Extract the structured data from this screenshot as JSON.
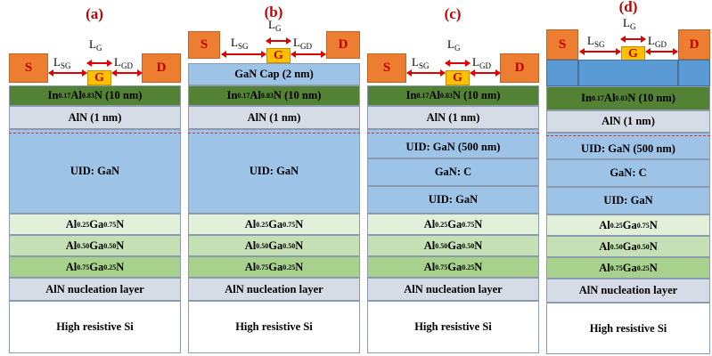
{
  "labels": {
    "source": "S",
    "drain": "D",
    "gate": "G",
    "lg_main": "L",
    "lg_sub": "G",
    "lsg_main": "L",
    "lsg_sub": "SG",
    "lgd_main": "L",
    "lgd_sub": "GD"
  },
  "layers": {
    "barrier_pre": "In",
    "barrier_sub1": "0.17",
    "barrier_mid": "Al",
    "barrier_sub2": "0.83",
    "barrier_post": "N (10 nm)",
    "spacer": "AlN (1 nm)",
    "uid_gan": "UID: GaN",
    "uid_gan_500": "UID: GaN (500 nm)",
    "gan_c": "GaN: C",
    "gan_cap": "GaN Cap (2 nm)",
    "nucleation": "AlN nucleation layer",
    "substrate": "High resistive Si",
    "al": "Al",
    "ga": "Ga",
    "n": "N",
    "b1_x": "0.25",
    "b1_y": "0.75",
    "b2_x": "0.50",
    "b2_y": "0.50",
    "b3_x": "0.75",
    "b3_y": "0.25"
  },
  "panels": {
    "a": "(a)",
    "b": "(b)",
    "c": "(c)",
    "d": "(d)"
  },
  "colors": {
    "contact": "#ed7d31",
    "gate": "#ffc000",
    "barrier": "#548235",
    "spacer": "#d6dce5",
    "gan": "#9dc3e6",
    "buffer1": "#e2efd9",
    "buffer2": "#c5e0b4",
    "buffer3": "#a9d18e",
    "arrow": "#e00000"
  }
}
